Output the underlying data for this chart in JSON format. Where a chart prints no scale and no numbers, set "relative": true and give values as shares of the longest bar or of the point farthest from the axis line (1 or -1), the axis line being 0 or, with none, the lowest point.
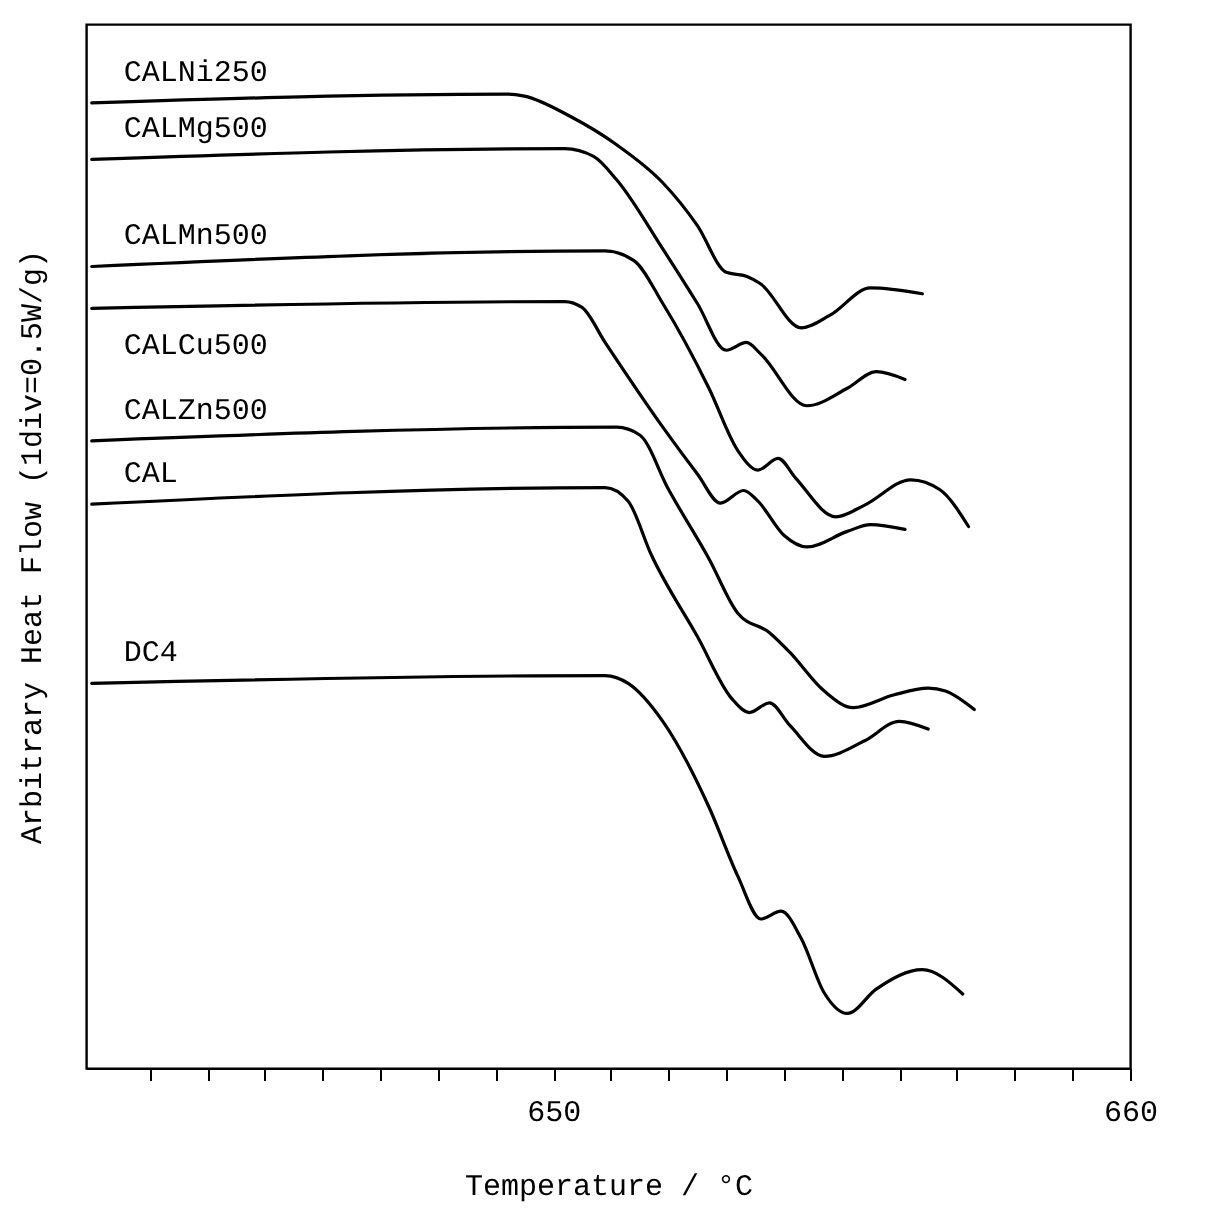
{
  "chart_data": {
    "type": "line",
    "xlabel": "Temperature / °C",
    "ylabel": "Arbitrary Heat Flow (1div=0.5W/g)",
    "relative": true,
    "grid": false,
    "legend": false,
    "marker": "none",
    "line_style": "solid",
    "xlim": [
      641.9,
      660
    ],
    "xticks": [
      {
        "value": 643,
        "label": null
      },
      {
        "value": 644,
        "label": null
      },
      {
        "value": 645,
        "label": null
      },
      {
        "value": 646,
        "label": null
      },
      {
        "value": 647,
        "label": null
      },
      {
        "value": 648,
        "label": null
      },
      {
        "value": 649,
        "label": null
      },
      650,
      {
        "value": 651,
        "label": null
      },
      {
        "value": 652,
        "label": null
      },
      {
        "value": 653,
        "label": null
      },
      {
        "value": 654,
        "label": null
      },
      {
        "value": 655,
        "label": null
      },
      {
        "value": 656,
        "label": null
      },
      {
        "value": 657,
        "label": null
      },
      {
        "value": 658,
        "label": null
      },
      {
        "value": 659,
        "label": null
      },
      660
    ],
    "series": [
      {
        "name": "CALNi250",
        "color": "#000000",
        "x": [
          642,
          649.2,
          649.5,
          650.3,
          651.1,
          651.9,
          652.5,
          653.0,
          653.35,
          653.6,
          654.3,
          654.8,
          655.5,
          656.4
        ],
        "values": [
          0.991,
          1.0,
          0.998,
          0.977,
          0.948,
          0.909,
          0.865,
          0.817,
          0.813,
          0.805,
          0.76,
          0.773,
          0.801,
          0.795
        ]
      },
      {
        "name": "CALMg500",
        "color": "#000000",
        "x": [
          642,
          650.2,
          650.7,
          651.1,
          651.9,
          652.5,
          653.0,
          653.35,
          653.6,
          654.4,
          655.1,
          655.6,
          656.1
        ],
        "values": [
          0.933,
          0.944,
          0.936,
          0.912,
          0.841,
          0.785,
          0.737,
          0.745,
          0.733,
          0.68,
          0.698,
          0.715,
          0.707
        ]
      },
      {
        "name": "CALMn500",
        "color": "#000000",
        "x": [
          642,
          650.9,
          651.4,
          651.9,
          652.7,
          653.2,
          653.55,
          653.9,
          654.2,
          654.9,
          655.4,
          656.2,
          656.7,
          657.2
        ],
        "values": [
          0.823,
          0.839,
          0.829,
          0.785,
          0.698,
          0.634,
          0.614,
          0.626,
          0.606,
          0.566,
          0.578,
          0.604,
          0.594,
          0.556
        ]
      },
      {
        "name": "CALCu500",
        "color": "#000000",
        "x": [
          642,
          650.2,
          650.5,
          650.9,
          651.9,
          652.5,
          652.9,
          653.3,
          653.55,
          654.0,
          654.4,
          655.1,
          655.5,
          656.1
        ],
        "values": [
          0.78,
          0.787,
          0.781,
          0.745,
          0.658,
          0.61,
          0.58,
          0.593,
          0.582,
          0.547,
          0.535,
          0.551,
          0.558,
          0.553
        ]
      },
      {
        "name": "CALZn500",
        "color": "#000000",
        "x": [
          642,
          651.1,
          651.5,
          652.0,
          652.7,
          653.2,
          653.75,
          654.1,
          654.7,
          655.2,
          655.9,
          656.5,
          656.8,
          657.3
        ],
        "values": [
          0.644,
          0.658,
          0.65,
          0.594,
          0.523,
          0.467,
          0.447,
          0.427,
          0.387,
          0.37,
          0.383,
          0.39,
          0.387,
          0.368
        ]
      },
      {
        "name": "CAL",
        "color": "#000000",
        "x": [
          642,
          650.9,
          651.3,
          651.7,
          652.5,
          653.1,
          653.4,
          653.75,
          654.1,
          654.7,
          655.4,
          656.0,
          656.5
        ],
        "values": [
          0.579,
          0.596,
          0.582,
          0.527,
          0.443,
          0.379,
          0.365,
          0.375,
          0.352,
          0.32,
          0.336,
          0.356,
          0.348
        ]
      },
      {
        "name": "DC4",
        "color": "#000000",
        "x": [
          642,
          650.9,
          651.3,
          651.9,
          652.7,
          653.2,
          653.6,
          653.95,
          654.3,
          654.7,
          655.1,
          655.6,
          656.4,
          657.1
        ],
        "values": [
          0.395,
          0.403,
          0.395,
          0.356,
          0.268,
          0.197,
          0.153,
          0.161,
          0.133,
          0.077,
          0.056,
          0.081,
          0.101,
          0.076
        ]
      }
    ]
  }
}
